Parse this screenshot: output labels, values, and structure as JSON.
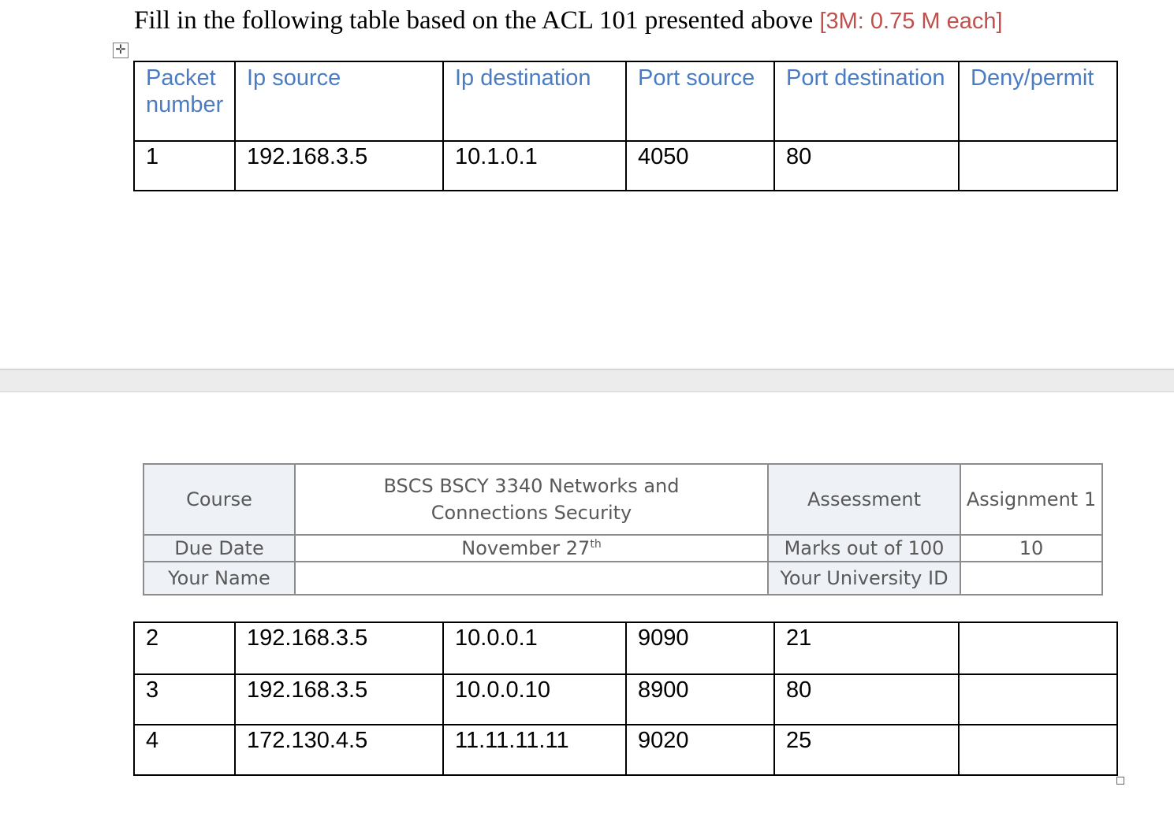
{
  "question": {
    "text": "Fill in the following table based on the ACL 101 presented above ",
    "marks": "[3M: 0.75 M each]"
  },
  "table_move_icon": "move-cross-icon",
  "acl_table": {
    "headers": [
      "Packet number",
      "Ip source",
      "Ip destination",
      "Port source",
      "Port destination",
      "Deny/permit"
    ],
    "rows": [
      {
        "packet": "1",
        "ip_source": "192.168.3.5",
        "ip_destination": "10.1.0.1",
        "port_source": "4050",
        "port_destination": "80",
        "action": ""
      },
      {
        "packet": "2",
        "ip_source": "192.168.3.5",
        "ip_destination": "10.0.0.1",
        "port_source": "9090",
        "port_destination": "21",
        "action": ""
      },
      {
        "packet": "3",
        "ip_source": "192.168.3.5",
        "ip_destination": "10.0.0.10",
        "port_source": "8900",
        "port_destination": "80",
        "action": ""
      },
      {
        "packet": "4",
        "ip_source": "172.130.4.5",
        "ip_destination": "11.11.11.11",
        "port_source": "9020",
        "port_destination": "25",
        "action": ""
      }
    ]
  },
  "header_table": {
    "course_label": "Course",
    "course_value": "BSCS BSCY 3340 Networks and Connections Security",
    "assessment_label": "Assessment",
    "assessment_value": "Assignment 1",
    "due_date_label": "Due Date",
    "due_date_value": "November 27",
    "due_date_suffix": "th",
    "marks_label": "Marks out of 100",
    "marks_value": "10",
    "name_label": "Your Name",
    "name_value": "",
    "id_label": "Your University ID",
    "id_value": ""
  },
  "colors": {
    "header_text": "#4a7cc4",
    "marks_text": "#c0504d",
    "label_background": "#eef1f6",
    "page_separator": "#ececec"
  }
}
